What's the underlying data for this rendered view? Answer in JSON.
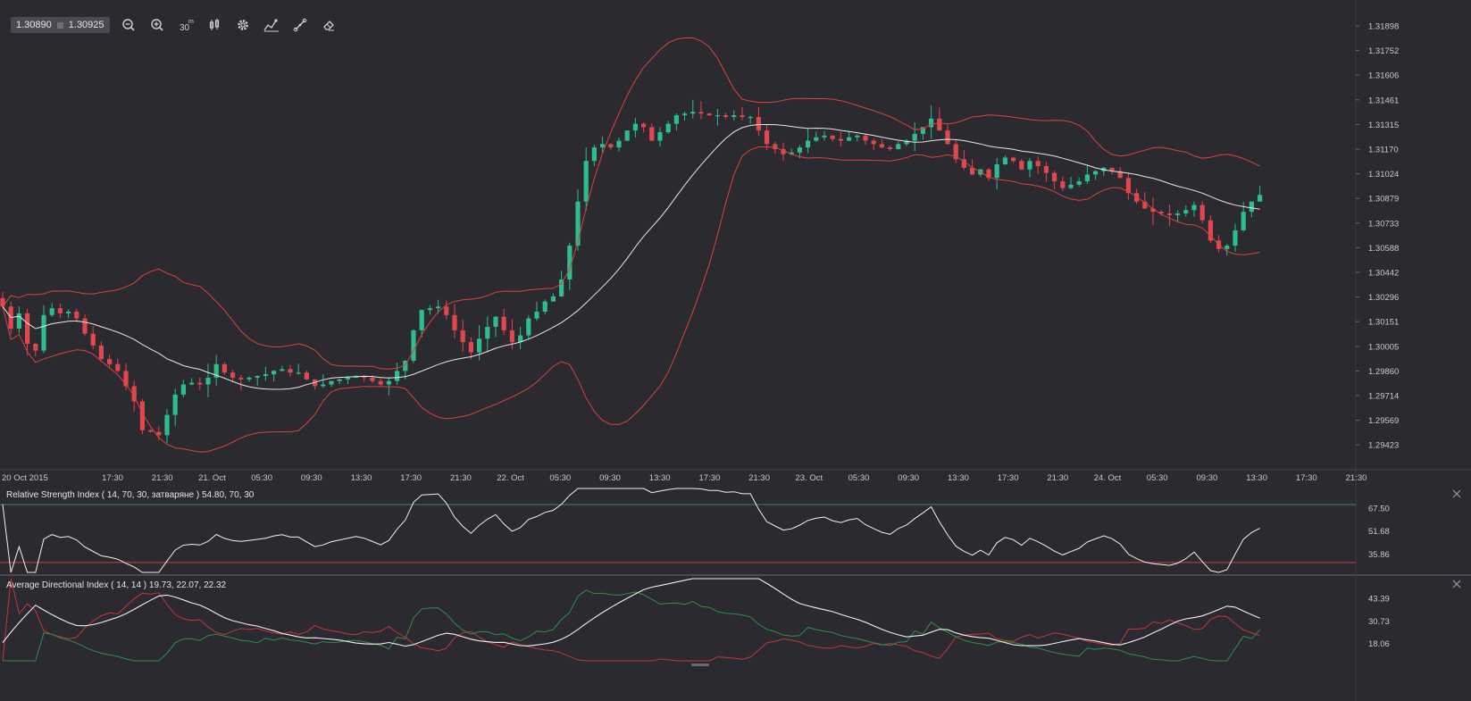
{
  "toolbar": {
    "bid": "1.30890",
    "ask": "1.30925",
    "tools": [
      {
        "name": "zoom-out-icon"
      },
      {
        "name": "zoom-in-icon"
      },
      {
        "name": "timeframe-icon",
        "label": "30",
        "sup": "m"
      },
      {
        "name": "candle-type-icon"
      },
      {
        "name": "settings-icon"
      },
      {
        "name": "indicators-icon"
      },
      {
        "name": "draw-line-icon"
      },
      {
        "name": "eraser-icon"
      }
    ]
  },
  "colors": {
    "background": "#2a2a30",
    "bull": "#2dbd8f",
    "bear": "#e0484e",
    "band": "#d9443f",
    "middle": "#e8e8e8",
    "grid": "#3a3a42",
    "rsi_upper": "#3f8a55",
    "rsi_lower": "#d93b3b",
    "adx": "#f0f0f0",
    "plus_di": "#2f8f4c",
    "minus_di": "#c4363a"
  },
  "chart_data": [
    {
      "type": "candlestick",
      "y_ticks": [
        "1.31898",
        "1.31752",
        "1.31606",
        "1.31461",
        "1.31315",
        "1.31170",
        "1.31024",
        "1.30879",
        "1.30733",
        "1.30588",
        "1.30442",
        "1.30296",
        "1.30151",
        "1.30005",
        "1.29860",
        "1.29714",
        "1.29569",
        "1.29423"
      ],
      "x_ticks": [
        "20 Oct 2015",
        "17:30",
        "21:30",
        "21. Oct",
        "05:30",
        "09:30",
        "13:30",
        "17:30",
        "21:30",
        "22. Oct",
        "05:30",
        "09:30",
        "13:30",
        "17:30",
        "21:30",
        "23. Oct",
        "05:30",
        "09:30",
        "13:30",
        "17:30",
        "21:30",
        "24. Oct",
        "05:30",
        "09:30",
        "13:30",
        "17:30",
        "21:30"
      ],
      "indicators": [
        "Bollinger Bands"
      ],
      "close_series": [
        1.3024,
        1.3011,
        1.302,
        1.3002,
        1.2998,
        1.3019,
        1.3023,
        1.302,
        1.3021,
        1.3017,
        1.3008,
        1.3001,
        1.2993,
        1.299,
        1.2986,
        1.2977,
        1.2968,
        1.2951,
        1.295,
        1.2948,
        1.296,
        1.2972,
        1.2978,
        1.2979,
        1.2978,
        1.2982,
        1.299,
        1.2985,
        1.2982,
        1.2981,
        1.2982,
        1.2983,
        1.2984,
        1.2986,
        1.2987,
        1.2985,
        1.2985,
        1.2981,
        1.2977,
        1.2978,
        1.298,
        1.2981,
        1.2982,
        1.2983,
        1.2982,
        1.298,
        1.2978,
        1.298,
        1.2986,
        1.2992,
        1.301,
        1.3022,
        1.3023,
        1.3024,
        1.3019,
        1.301,
        1.3003,
        1.2997,
        1.3005,
        1.3012,
        1.3018,
        1.301,
        1.3003,
        1.3007,
        1.3017,
        1.3021,
        1.3027,
        1.303,
        1.304,
        1.306,
        1.3086,
        1.311,
        1.3118,
        1.312,
        1.3118,
        1.3122,
        1.3128,
        1.3132,
        1.313,
        1.3122,
        1.3127,
        1.3132,
        1.3137,
        1.3138,
        1.3139,
        1.3138,
        1.3137,
        1.3137,
        1.3136,
        1.3137,
        1.3136,
        1.3136,
        1.3128,
        1.312,
        1.3117,
        1.3114,
        1.3115,
        1.3118,
        1.3122,
        1.3124,
        1.3125,
        1.3123,
        1.3122,
        1.3124,
        1.3125,
        1.3122,
        1.312,
        1.3118,
        1.3117,
        1.312,
        1.3122,
        1.3126,
        1.313,
        1.3135,
        1.3128,
        1.312,
        1.3111,
        1.3106,
        1.3102,
        1.3105,
        1.31,
        1.3108,
        1.3112,
        1.311,
        1.3105,
        1.311,
        1.3107,
        1.3103,
        1.3098,
        1.3094,
        1.3096,
        1.3098,
        1.3102,
        1.3104,
        1.3106,
        1.3104,
        1.31,
        1.3091,
        1.3086,
        1.3082,
        1.308,
        1.3079,
        1.3078,
        1.3079,
        1.3081,
        1.3084,
        1.3075,
        1.3063,
        1.3058,
        1.306,
        1.3069,
        1.308,
        1.3086,
        1.309
      ]
    },
    {
      "type": "line",
      "title": "Relative Strength Index ( 14, 70, 30, затваряне ) 54.80, 70, 30",
      "y_ticks": [
        "67.50",
        "51.68",
        "35.86"
      ],
      "levels": [
        70,
        30
      ]
    },
    {
      "type": "line",
      "title": "Average Directional Index ( 14, 14 ) 19.73, 22.07, 22.32",
      "y_ticks": [
        "43.39",
        "30.73",
        "18.06"
      ]
    }
  ]
}
